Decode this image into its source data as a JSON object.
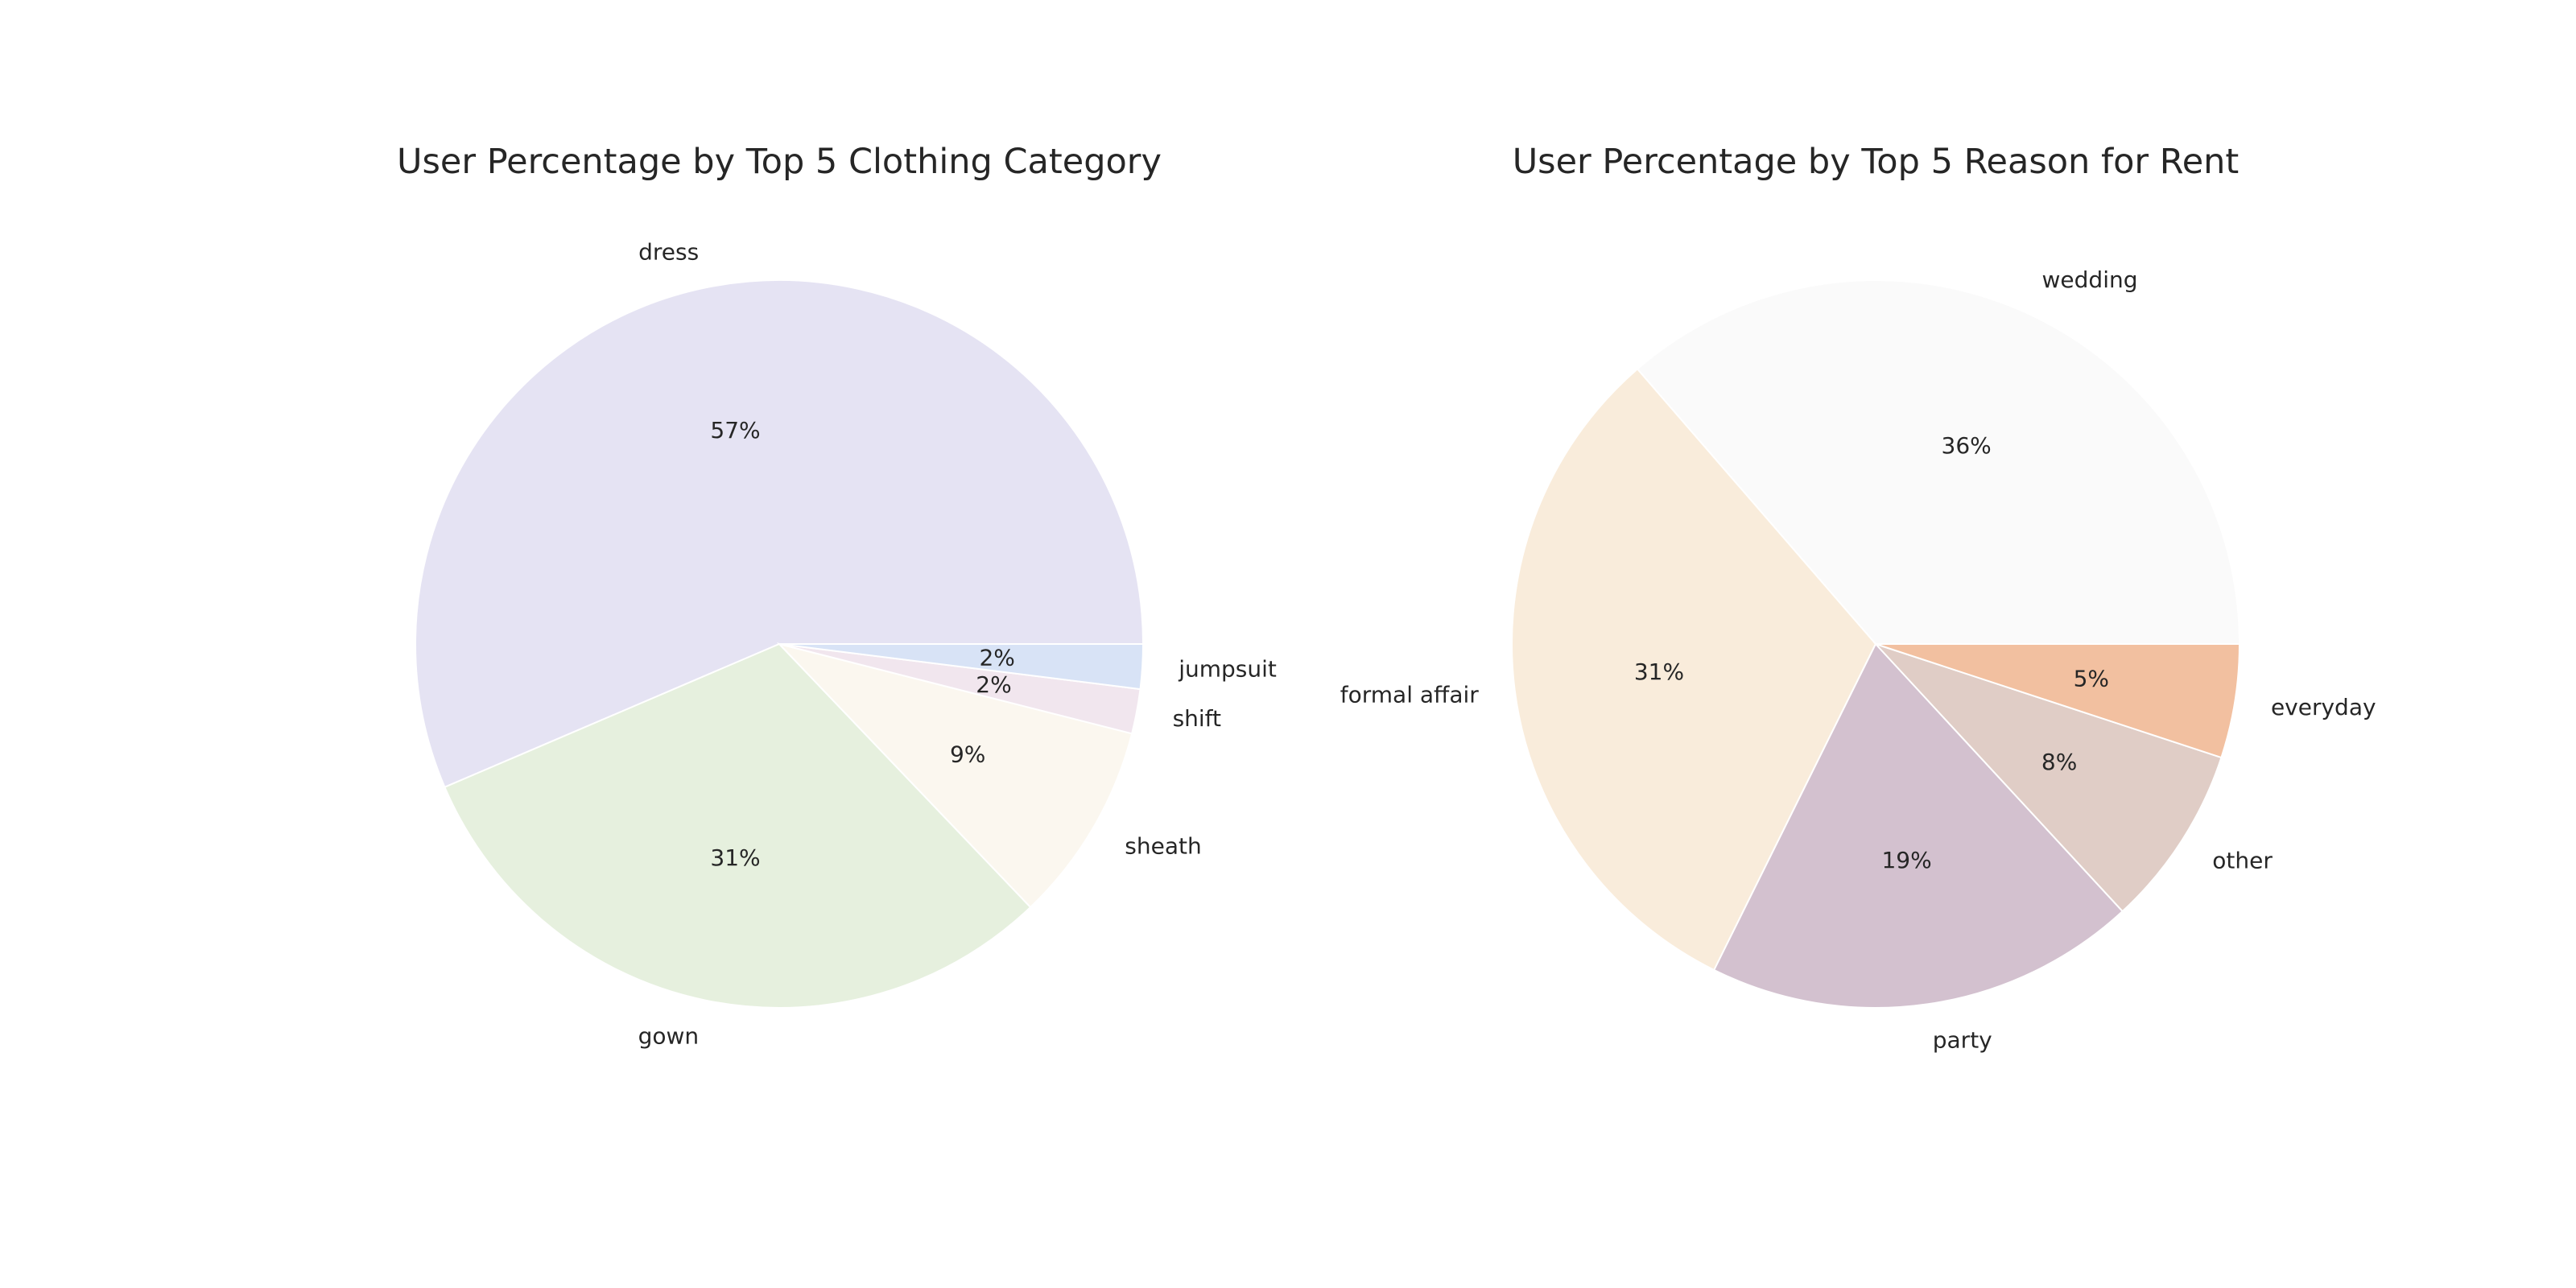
{
  "chart_data": [
    {
      "type": "pie",
      "title": "User Percentage by Top 5 Clothing Category",
      "categories": [
        "dress",
        "gown",
        "sheath",
        "shift",
        "jumpsuit"
      ],
      "values": [
        57,
        31,
        9,
        2,
        2
      ],
      "percent_labels": [
        "57%",
        "31%",
        "9%",
        "2%",
        "2%"
      ],
      "colors": [
        "#e5e3f3",
        "#e6f0de",
        "#fbf7ef",
        "#f1e6ee",
        "#d8e3f6"
      ]
    },
    {
      "type": "pie",
      "title": "User Percentage by Top 5 Reason for Rent",
      "categories": [
        "wedding",
        "formal affair",
        "party",
        "other",
        "everyday"
      ],
      "values": [
        36,
        31,
        19,
        8,
        5
      ],
      "percent_labels": [
        "36%",
        "31%",
        "19%",
        "8%",
        "5%"
      ],
      "colors": [
        "#fafafa",
        "#f9ecdb",
        "#d3c1cf",
        "#e0cdc6",
        "#f2c0a0"
      ]
    }
  ]
}
